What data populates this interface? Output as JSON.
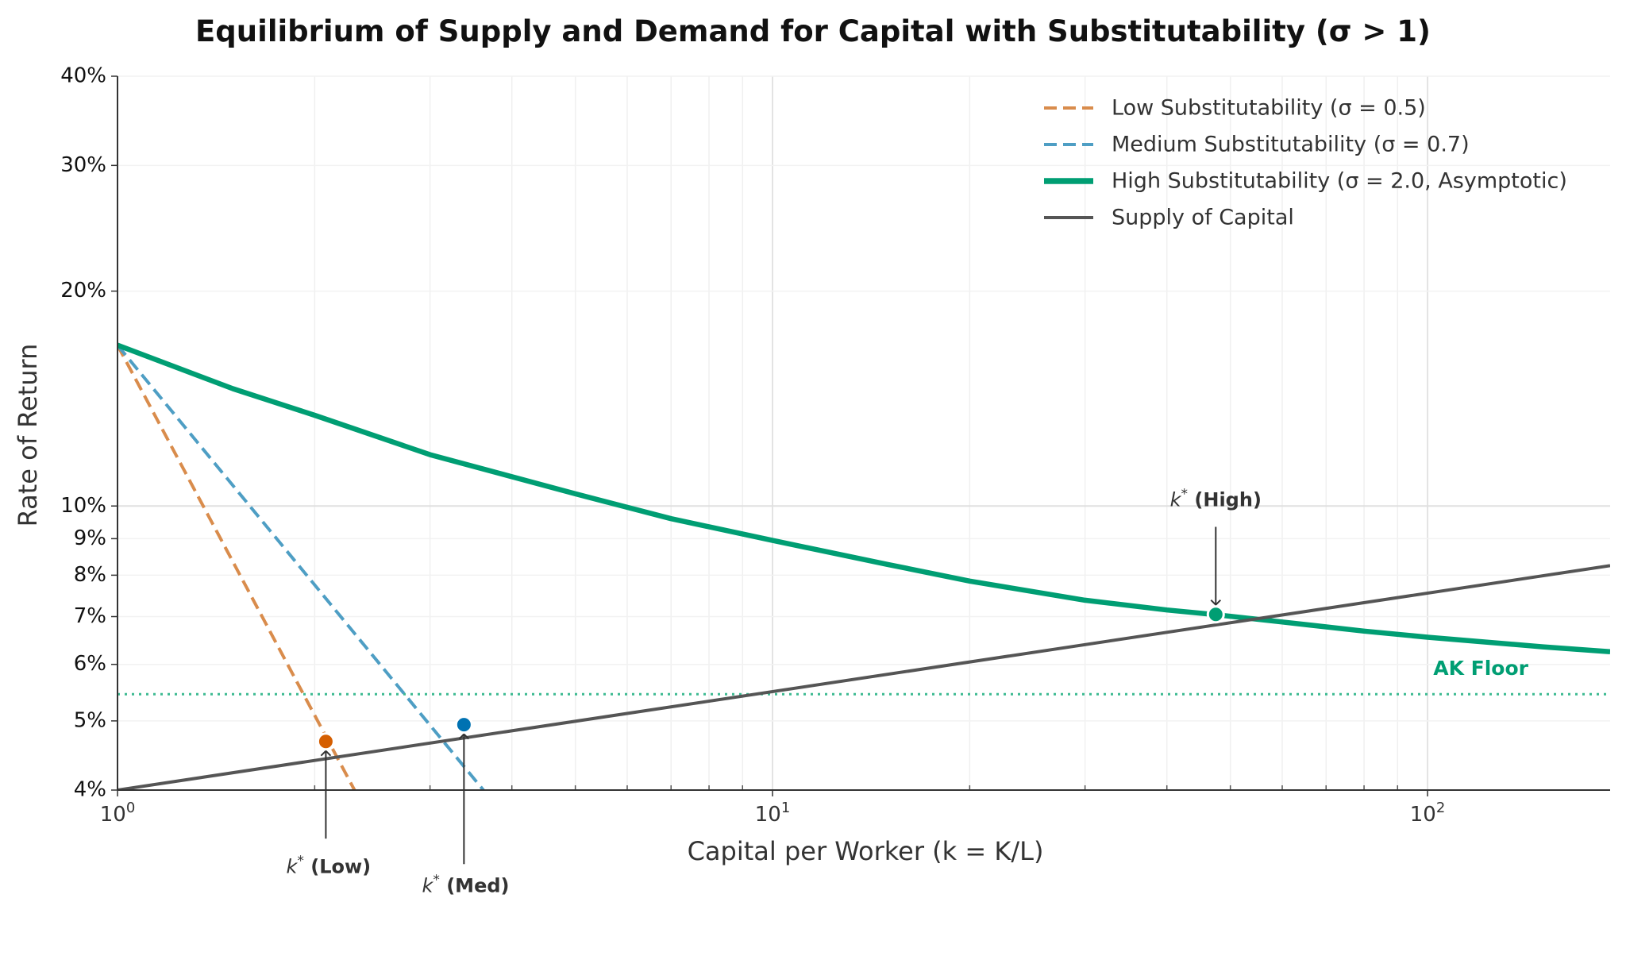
{
  "chart_data": {
    "type": "line",
    "title": "Equilibrium of Supply and Demand for Capital with Substitutability (σ > 1)",
    "xlabel": "Capital per Worker (k = K/L)",
    "ylabel": "Rate of Return",
    "xscale": "log",
    "yscale": "log",
    "xlim": [
      1,
      190
    ],
    "ylim": [
      0.04,
      0.4
    ],
    "x_ticks": [
      {
        "value": 1,
        "base": "10",
        "exp": "0"
      },
      {
        "value": 10,
        "base": "10",
        "exp": "1"
      },
      {
        "value": 100,
        "base": "10",
        "exp": "2"
      }
    ],
    "y_ticks": [
      {
        "value": 0.04,
        "label": "4%"
      },
      {
        "value": 0.05,
        "label": "5%"
      },
      {
        "value": 0.06,
        "label": "6%"
      },
      {
        "value": 0.07,
        "label": "7%"
      },
      {
        "value": 0.08,
        "label": "8%"
      },
      {
        "value": 0.09,
        "label": "9%"
      },
      {
        "value": 0.1,
        "label": "10%"
      },
      {
        "value": 0.2,
        "label": "20%"
      },
      {
        "value": 0.3,
        "label": "30%"
      },
      {
        "value": 0.4,
        "label": "40%"
      }
    ],
    "grid": true,
    "legend_position": "top-right",
    "series": [
      {
        "name": "Low Substitutability (σ = 0.5)",
        "color": "#d98c4c",
        "style": "dashed",
        "x": [
          1,
          2.55
        ],
        "y": [
          0.168,
          0.0335
        ]
      },
      {
        "name": "Medium Substitutability (σ = 0.7)",
        "color": "#4e9ec4",
        "style": "dashed",
        "x": [
          1,
          4.3
        ],
        "y": [
          0.168,
          0.033
        ]
      },
      {
        "name": "High Substitutability (σ = 2.0, Asymptotic)",
        "color": "#009e73",
        "style": "solid",
        "x": [
          1,
          1.5,
          2,
          3,
          5,
          7,
          10,
          15,
          20,
          30,
          40,
          47,
          60,
          80,
          100,
          150,
          190
        ],
        "y": [
          0.168,
          0.146,
          0.134,
          0.118,
          0.104,
          0.096,
          0.0895,
          0.0828,
          0.0785,
          0.0738,
          0.0715,
          0.0705,
          0.0688,
          0.0668,
          0.0655,
          0.0635,
          0.0625
        ]
      },
      {
        "name": "Supply of Capital",
        "color": "#555555",
        "style": "solid",
        "x": [
          1,
          190
        ],
        "y": [
          0.04,
          0.0825
        ]
      }
    ],
    "reference_line": {
      "label": "AK Floor",
      "y": 0.0545,
      "color": "#3cba91",
      "style": "dotted"
    },
    "equilibria": [
      {
        "label_prefix": "k",
        "label_sup": "*",
        "label_suffix": " (Low)",
        "x": 2.08,
        "y": 0.0468,
        "color": "#d55e00",
        "text_x": 2.1,
        "text_y": 0.0306,
        "arrow_from_y": 0.0342
      },
      {
        "label_prefix": "k",
        "label_sup": "*",
        "label_suffix": " (Med)",
        "x": 3.38,
        "y": 0.0494,
        "color": "#0072b2",
        "text_x": 3.4,
        "text_y": 0.0288,
        "arrow_from_y": 0.0315
      },
      {
        "label_prefix": "k",
        "label_sup": "*",
        "label_suffix": " (High)",
        "x": 47.5,
        "y": 0.0705,
        "color": "#009e73",
        "text_x": 47.5,
        "text_y": 0.1,
        "arrow_from_y": 0.0935
      }
    ]
  }
}
